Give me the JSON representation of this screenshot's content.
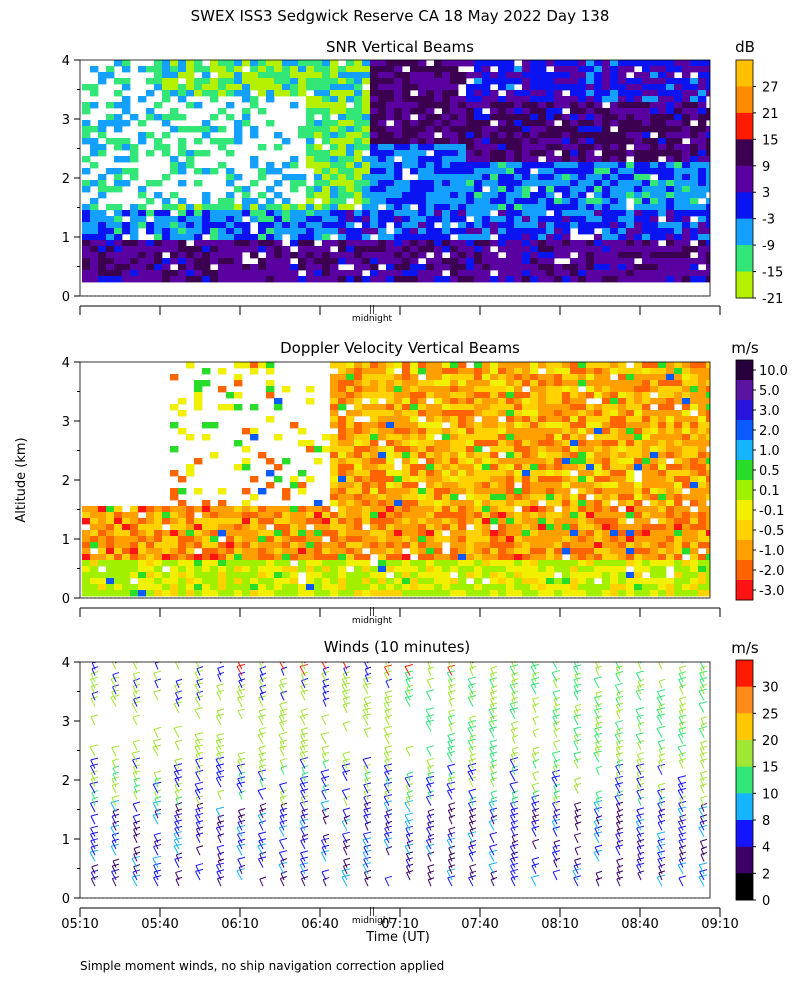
{
  "figure": {
    "title": "SWEX ISS3 Sedgwick Reserve CA  18 May 2022 Day 138",
    "ylabel": "Altitude (km)",
    "xlabel": "Time (UT)",
    "footnote": "Simple moment winds, no ship navigation correction applied",
    "midnight_label": "midnight",
    "midnight_marker": "||"
  },
  "chart_data": [
    {
      "type": "heatmap",
      "title": "SNR Vertical Beams",
      "unit": "dB",
      "ylim": [
        0,
        4
      ],
      "y_ticks": [
        "0",
        "1",
        "2",
        "3",
        "4"
      ],
      "colorbar": {
        "labels": [
          "27",
          "21",
          "15",
          "9",
          "3",
          "-3",
          "-9",
          "-15",
          "-21"
        ],
        "colors": [
          "#ffc000",
          "#ff8c00",
          "#ff1a00",
          "#3c0050",
          "#5a00a0",
          "#0a14f0",
          "#14a0ff",
          "#32e678",
          "#b4f000"
        ]
      }
    },
    {
      "type": "heatmap",
      "title": "Doppler Velocity Vertical Beams",
      "unit": "m/s",
      "ylim": [
        0,
        4
      ],
      "y_ticks": [
        "0",
        "1",
        "2",
        "3",
        "4"
      ],
      "colorbar": {
        "labels": [
          "10.0",
          "5.0",
          "3.0",
          "2.0",
          "1.0",
          "0.5",
          "0.1",
          "-0.1",
          "-0.5",
          "-1.0",
          "-2.0",
          "-3.0"
        ],
        "colors": [
          "#28003c",
          "#5a14a0",
          "#2814dc",
          "#0a5aff",
          "#14b4ff",
          "#28dc28",
          "#a0f000",
          "#f0f000",
          "#ffd200",
          "#ffa000",
          "#ff6400",
          "#ff1414"
        ]
      }
    },
    {
      "type": "scatter",
      "title": "Winds (10 minutes)",
      "unit": "m/s",
      "ylim": [
        0,
        4
      ],
      "y_ticks": [
        "0",
        "1",
        "2",
        "3",
        "4"
      ],
      "x_ticks": [
        "05:10",
        "05:40",
        "06:10",
        "06:40",
        "07:10",
        "07:40",
        "08:10",
        "08:40",
        "09:10"
      ],
      "colorbar": {
        "labels": [
          "30",
          "25",
          "20",
          "15",
          "10",
          "8",
          "4",
          "2",
          "0"
        ],
        "colors": [
          "#ff1a00",
          "#ff8c1a",
          "#ffc800",
          "#a0e632",
          "#32e678",
          "#14b4ff",
          "#1414ff",
          "#3c0064",
          "#000000"
        ]
      }
    }
  ]
}
